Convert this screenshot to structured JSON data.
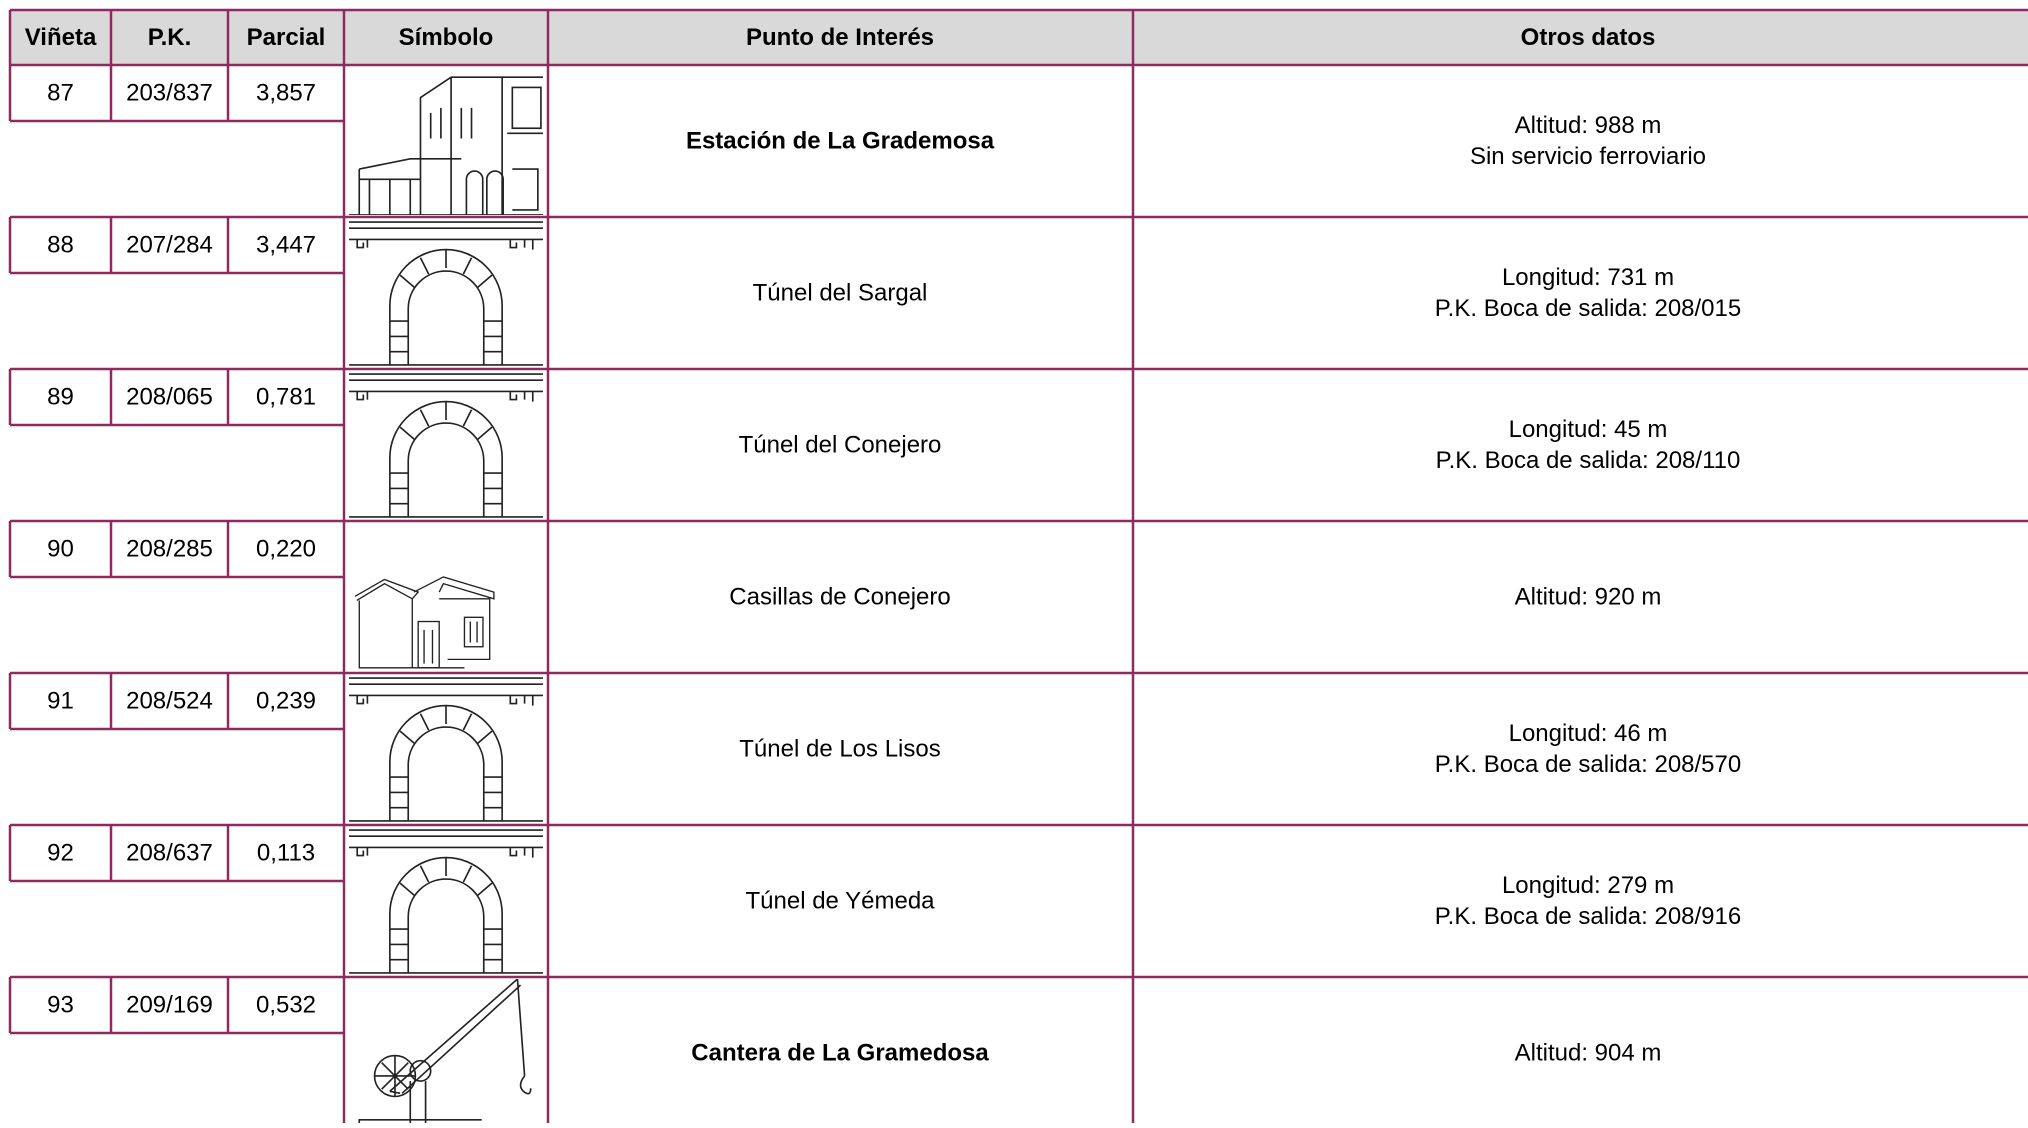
{
  "table": {
    "header": [
      "Viñeta",
      "P.K.",
      "Parcial",
      "Símbolo",
      "Punto de Interés",
      "Otros datos"
    ],
    "rows": [
      {
        "vineta": "87",
        "pk": "203/837",
        "parcial": "3,857",
        "punto": "Estación de La Grademosa",
        "otros": [
          "Altitud: 988 m",
          "Sin servicio ferroviario"
        ]
      },
      {
        "vineta": "88",
        "pk": "207/284",
        "parcial": "3,447",
        "punto": "Túnel del Sargal",
        "otros": [
          "Longitud: 731 m",
          "P.K. Boca de salida: 208/015"
        ]
      },
      {
        "vineta": "89",
        "pk": "208/065",
        "parcial": "0,781",
        "punto": "Túnel del Conejero",
        "otros": [
          "Longitud: 45 m",
          "P.K. Boca de salida: 208/110"
        ]
      },
      {
        "vineta": "90",
        "pk": "208/285",
        "parcial": "0,220",
        "punto": "Casillas de Conejero",
        "otros": [
          "Altitud: 920 m"
        ]
      },
      {
        "vineta": "91",
        "pk": "208/524",
        "parcial": "0,239",
        "punto": "Túnel de Los Lisos",
        "otros": [
          "Longitud: 46 m",
          "P.K. Boca de salida: 208/570"
        ]
      },
      {
        "vineta": "92",
        "pk": "208/637",
        "parcial": "0,113",
        "punto": "Túnel de Yémeda",
        "otros": [
          "Longitud: 279 m",
          "P.K. Boca de salida: 208/916"
        ]
      },
      {
        "vineta": "93",
        "pk": "209/169",
        "parcial": "0,532",
        "punto": "Cantera de La Gramedosa",
        "otros": [
          "Altitud: 904 m"
        ]
      }
    ]
  }
}
